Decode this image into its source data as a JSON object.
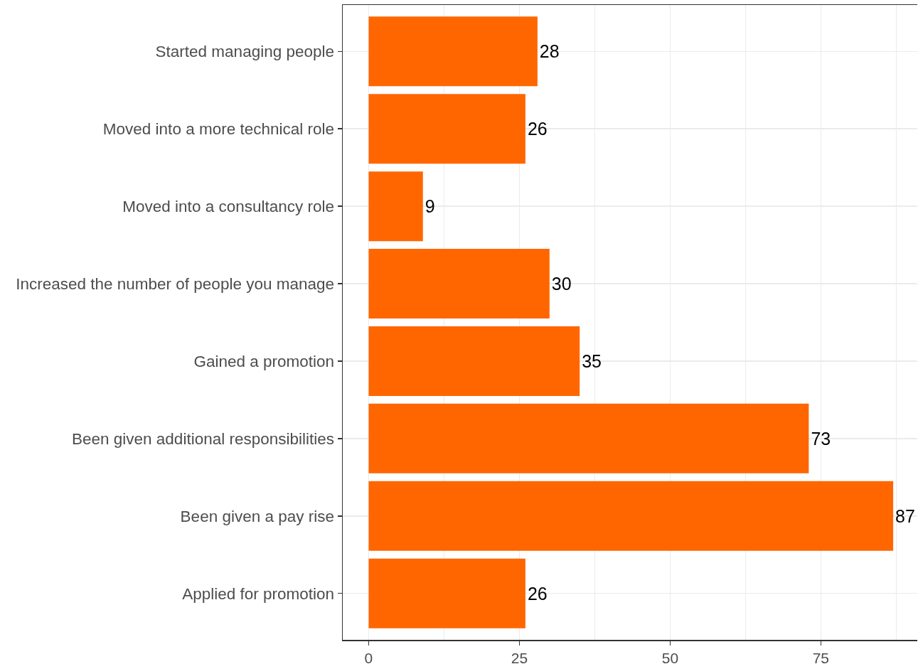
{
  "chart_data": {
    "type": "bar",
    "orientation": "horizontal",
    "categories": [
      "Started managing people",
      "Moved into a more technical role",
      "Moved into a consultancy role",
      "Increased the number of people you manage",
      "Gained a promotion",
      "Been given additional responsibilities",
      "Been given a pay rise",
      "Applied for promotion"
    ],
    "values": [
      28,
      26,
      9,
      30,
      35,
      73,
      87,
      26
    ],
    "color": "#ff6600",
    "xlim": [
      -4.3,
      91
    ],
    "xticks": [
      0,
      25,
      50,
      75
    ],
    "grid": true,
    "data_labels": true
  }
}
